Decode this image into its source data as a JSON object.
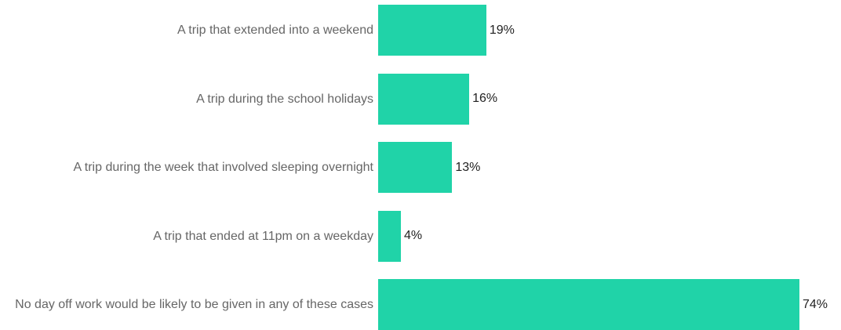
{
  "chart_data": {
    "type": "bar",
    "orientation": "horizontal",
    "categories": [
      "A trip that extended into a weekend",
      "A trip during the school holidays",
      "A trip during the week that involved sleeping overnight",
      "A trip that ended at 11pm on a weekday",
      "No day off work would be likely to be given in any of these cases"
    ],
    "values": [
      19,
      16,
      13,
      4,
      74
    ],
    "value_labels": [
      "19%",
      "16%",
      "13%",
      "4%",
      "74%"
    ],
    "color": "#20d3a8"
  }
}
